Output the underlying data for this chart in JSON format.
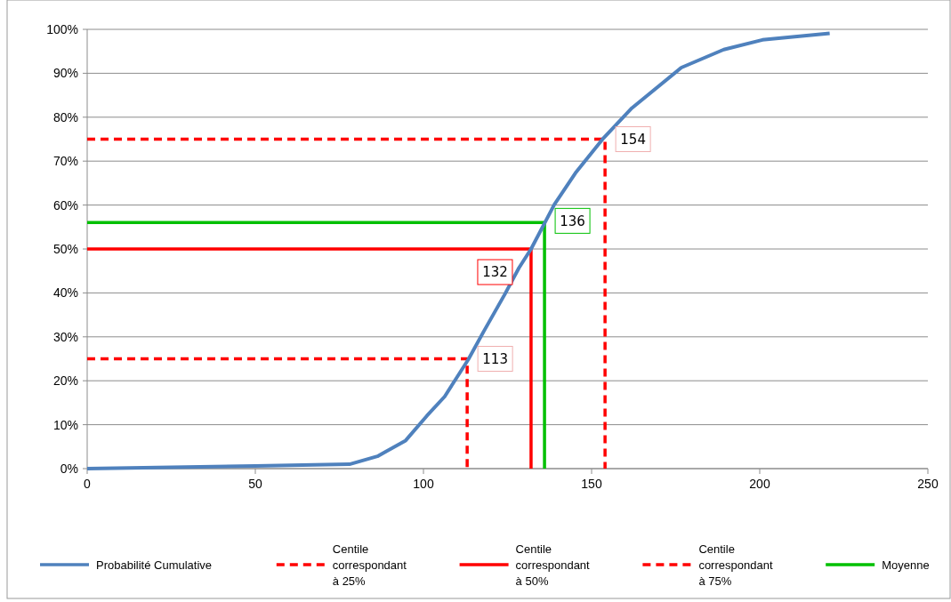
{
  "chart_data": {
    "type": "line",
    "xlim": [
      0,
      250
    ],
    "xticks": [
      0,
      50,
      100,
      150,
      200,
      250
    ],
    "ylim": [
      0,
      100
    ],
    "yticks": [
      {
        "value": 0,
        "label": "0%"
      },
      {
        "value": 10,
        "label": "10%"
      },
      {
        "value": 20,
        "label": "20%"
      },
      {
        "value": 30,
        "label": "30%"
      },
      {
        "value": 40,
        "label": "40%"
      },
      {
        "value": 50,
        "label": "50%"
      },
      {
        "value": 60,
        "label": "60%"
      },
      {
        "value": 70,
        "label": "70%"
      },
      {
        "value": 80,
        "label": "80%"
      },
      {
        "value": 90,
        "label": "90%"
      },
      {
        "value": 100,
        "label": "100%"
      }
    ],
    "grid": "y",
    "legend": "bottom",
    "marker": "none",
    "series": [
      {
        "name": "Probabilité Cumulative",
        "color": "#4f81bd",
        "line_style": "solid",
        "x": [
          0,
          50,
          78,
          86.3,
          94.7,
          101,
          106.3,
          113.3,
          117.9,
          124.2,
          128.4,
          132,
          135.9,
          138.9,
          145.2,
          153.6,
          162,
          176.7,
          189.3,
          200.8,
          220.8
        ],
        "values": [
          0,
          0.6,
          1,
          2.8,
          6.4,
          12,
          16.4,
          24.8,
          31.2,
          39.7,
          45.7,
          50,
          55.7,
          60.1,
          67.3,
          75.3,
          82.1,
          91.3,
          95.4,
          97.6,
          99.1
        ]
      },
      {
        "name": "Centile correspondant à 25%",
        "color": "#ff0000",
        "line_style": "dashed",
        "x": [
          0,
          113,
          113
        ],
        "values": [
          25,
          25,
          0
        ]
      },
      {
        "name": "Centile correspondant à 50%",
        "color": "#ff0000",
        "line_style": "solid",
        "x": [
          0,
          132,
          132
        ],
        "values": [
          50,
          50,
          0
        ]
      },
      {
        "name": "Centile correspondant à 75%",
        "color": "#ff0000",
        "line_style": "dashed",
        "x": [
          0,
          154,
          154
        ],
        "values": [
          75,
          75,
          0
        ]
      },
      {
        "name": "Moyenne",
        "color": "#00c000",
        "line_style": "solid",
        "x": [
          0,
          136,
          136
        ],
        "values": [
          56,
          56,
          0
        ]
      }
    ],
    "annotations": [
      {
        "text": "154",
        "x": 154,
        "y": 75
      },
      {
        "text": "136",
        "x": 136,
        "y": 56
      },
      {
        "text": "132",
        "x": 132,
        "y": 50
      },
      {
        "text": "113",
        "x": 113,
        "y": 25
      }
    ]
  }
}
